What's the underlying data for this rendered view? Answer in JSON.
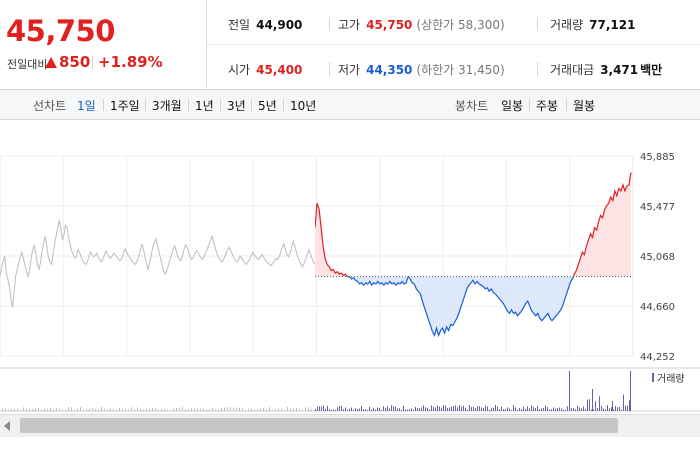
{
  "quote": {
    "price": "45,750",
    "change_label": "전일대비",
    "change": "850",
    "change_pct": "+1.89%",
    "stats": {
      "prev_close": {
        "label": "전일",
        "value": "44,900"
      },
      "high": {
        "label": "고가",
        "value": "45,750",
        "sub": "(상한가 58,300)"
      },
      "volume": {
        "label": "거래량",
        "value": "77,121"
      },
      "open": {
        "label": "시가",
        "value": "45,400"
      },
      "low": {
        "label": "저가",
        "value": "44,350",
        "sub": "(하한가 31,450)"
      },
      "trade_value": {
        "label": "거래대금",
        "value": "3,471",
        "unit": "백만"
      }
    }
  },
  "period_bar": {
    "line_label": "선차트",
    "line_options": [
      "1일",
      "1주일",
      "3개월",
      "1년",
      "3년",
      "5년",
      "10년"
    ],
    "active": "1일",
    "candle_label": "봉차트",
    "candle_options": [
      "일봉",
      "주봉",
      "월봉"
    ]
  },
  "colors": {
    "up": "#e0211f",
    "down": "#1a5ed6",
    "past": "#bdbdbd",
    "volume": "#6a5fa8"
  },
  "chart_data": {
    "type": "line",
    "ylim": [
      44252,
      45885
    ],
    "y_ticks": [
      "45,885",
      "45,477",
      "45,068",
      "44,660",
      "44,252"
    ],
    "baseline": 44900,
    "volume_legend": "거래량",
    "grid": true,
    "previous_day": [
      44900,
      44980,
      45020,
      45070,
      44940,
      44880,
      44820,
      44720,
      44650,
      44760,
      44900,
      44960,
      45010,
      45060,
      45100,
      45050,
      44990,
      44940,
      44900,
      44960,
      45050,
      45120,
      45160,
      45080,
      45000,
      44960,
      45020,
      45110,
      45180,
      45230,
      45150,
      45060,
      45020,
      45000,
      45080,
      45160,
      45230,
      45300,
      45360,
      45290,
      45200,
      45240,
      45320,
      45300,
      45220,
      45160,
      45110,
      45080,
      45050,
      45060,
      45120,
      45100,
      45060,
      45030,
      45010,
      45000,
      45020,
      45060,
      45100,
      45080,
      45060,
      45070,
      45090,
      45060,
      45040,
      45020,
      45040,
      45080,
      45110,
      45080,
      45060,
      45050,
      45070,
      45090,
      45080,
      45060,
      45040,
      45030,
      45050,
      45080,
      45130,
      45110,
      45080,
      45060,
      45040,
      45020,
      45010,
      45000,
      45030,
      45070,
      45110,
      45170,
      45120,
      45060,
      45000,
      44960,
      45020,
      45080,
      45140,
      45180,
      45210,
      45160,
      45100,
      45050,
      44990,
      44940,
      44920,
      44950,
      44990,
      45040,
      45080,
      45120,
      45150,
      45110,
      45070,
      45040,
      45030,
      45070,
      45120,
      45160,
      45140,
      45100,
      45060,
      45040,
      45060,
      45090,
      45110,
      45100,
      45070,
      45050,
      45040,
      45070,
      45100,
      45130,
      45160,
      45200,
      45230,
      45180,
      45140,
      45090,
      45060,
      45040,
      45020,
      45030,
      45060,
      45090,
      45120,
      45140,
      45110,
      45080,
      45050,
      45030,
      45020,
      45040,
      45070,
      45050,
      45030,
      45010,
      45000,
      45020,
      45040,
      45070,
      45100,
      45080,
      45060,
      45050,
      45040,
      45060,
      45080,
      45060,
      45040,
      45020,
      45010,
      45000,
      44990,
      45010,
      45030,
      45050,
      45040,
      45060,
      45100,
      45140,
      45170,
      45120,
      45080,
      45060,
      45090,
      45140,
      45190,
      45150,
      45100,
      45060,
      45030,
      45000,
      44980,
      45010,
      45040,
      45080,
      45120,
      45090,
      45050,
      45020,
      45000
    ],
    "today": [
      45300,
      45500,
      45450,
      45300,
      45150,
      45050,
      45000,
      44980,
      44950,
      44960,
      44930,
      44940,
      44920,
      44930,
      44910,
      44920,
      44900,
      44900,
      44880,
      44890,
      44870,
      44860,
      44840,
      44850,
      44830,
      44850,
      44840,
      44860,
      44830,
      44850,
      44840,
      44860,
      44840,
      44850,
      44830,
      44850,
      44840,
      44860,
      44840,
      44850,
      44830,
      44850,
      44840,
      44860,
      44840,
      44850,
      44900,
      44880,
      44850,
      44840,
      44800,
      44780,
      44760,
      44700,
      44650,
      44600,
      44550,
      44500,
      44450,
      44420,
      44480,
      44420,
      44460,
      44480,
      44440,
      44490,
      44460,
      44510,
      44500,
      44530,
      44560,
      44600,
      44650,
      44700,
      44750,
      44800,
      44830,
      44850,
      44870,
      44840,
      44860,
      44840,
      44830,
      44820,
      44800,
      44810,
      44780,
      44800,
      44770,
      44760,
      44740,
      44720,
      44700,
      44680,
      44650,
      44620,
      44600,
      44630,
      44600,
      44610,
      44580,
      44600,
      44620,
      44650,
      44680,
      44700,
      44660,
      44620,
      44600,
      44580,
      44600,
      44560,
      44540,
      44560,
      44580,
      44600,
      44560,
      44540,
      44560,
      44580,
      44600,
      44620,
      44650,
      44700,
      44750,
      44800,
      44850,
      44880,
      44920,
      44950,
      45000,
      45050,
      45100,
      45080,
      45150,
      45200,
      45250,
      45220,
      45300,
      45280,
      45350,
      45400,
      45380,
      45450,
      45480,
      45500,
      45550,
      45520,
      45600,
      45560,
      45620,
      45600,
      45650,
      45600,
      45640,
      45650,
      45750
    ]
  }
}
